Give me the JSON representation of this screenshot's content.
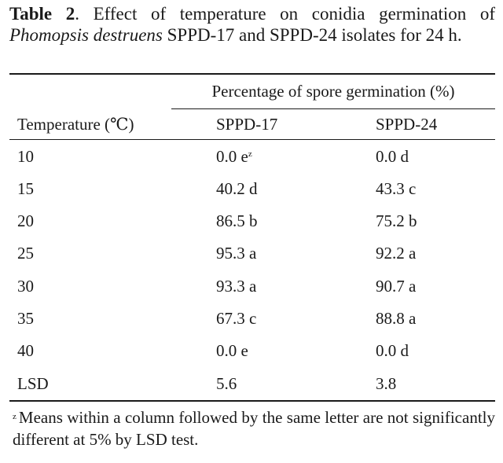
{
  "caption": {
    "label": "Table 2",
    "text_before_italic": ". Effect of temperature on conidia germination of ",
    "italic": "Phomopsis destruens",
    "text_after_italic": " SPPD-17 and SPPD-24 isolates for 24 h."
  },
  "header": {
    "span_label": "Percentage of spore germination (%)",
    "col_temperature": "Temperature (℃)",
    "col_a": "SPPD-17",
    "col_b": "SPPD-24"
  },
  "rows": [
    {
      "temp": "10",
      "a": "0.0 e",
      "a_sup": "z",
      "b": "0.0 d"
    },
    {
      "temp": "15",
      "a": "40.2 d",
      "b": "43.3 c"
    },
    {
      "temp": "20",
      "a": "86.5 b",
      "b": "75.2 b"
    },
    {
      "temp": "25",
      "a": "95.3 a",
      "b": "92.2 a"
    },
    {
      "temp": "30",
      "a": "93.3 a",
      "b": "90.7 a"
    },
    {
      "temp": "35",
      "a": "67.3 c",
      "b": "88.8 a"
    },
    {
      "temp": "40",
      "a": "0.0 e",
      "b": "0.0 d"
    },
    {
      "temp": "LSD",
      "a": "5.6",
      "b": "3.8"
    }
  ],
  "footnote": {
    "marker": "z",
    "text": "Means within a column followed by the same letter are not significantly different at 5% by LSD test."
  }
}
